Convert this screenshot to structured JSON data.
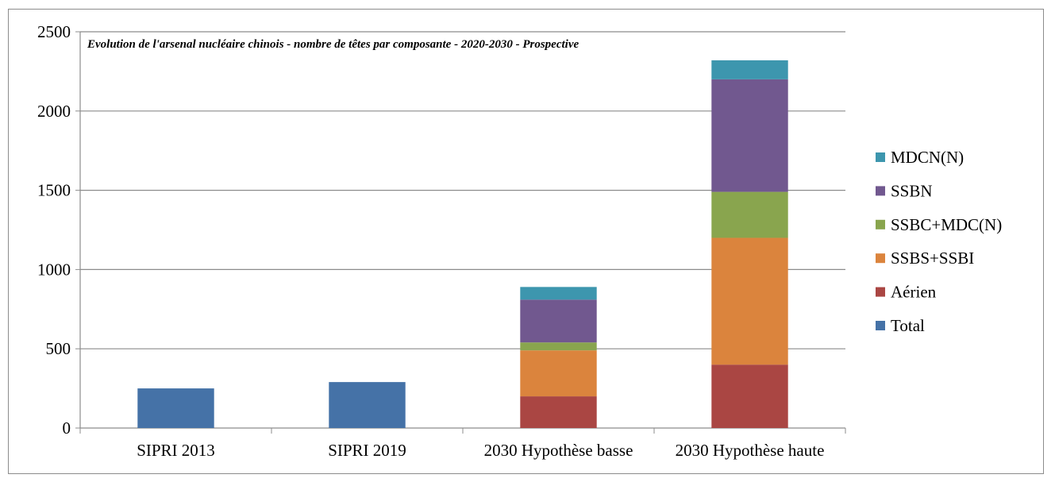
{
  "chart_data": {
    "type": "bar",
    "stacked": true,
    "title": "Evolution de l'arsenal nucléaire chinois - nombre de têtes par composante - 2020-2030 - Prospective",
    "xlabel": "",
    "ylabel": "",
    "ylim": [
      0,
      2500
    ],
    "yticks": [
      "0",
      "500",
      "1000",
      "1500",
      "2000",
      "2500"
    ],
    "grid": true,
    "legend_position": "right",
    "categories": [
      "SIPRI 2013",
      "SIPRI 2019",
      "2030 Hypothèse basse",
      "2030 Hypothèse haute"
    ],
    "series": [
      {
        "name": "Total",
        "color": "#4572a7",
        "values": [
          250,
          290,
          0,
          0
        ]
      },
      {
        "name": "Aérien",
        "color": "#aa4643",
        "values": [
          0,
          0,
          200,
          400
        ]
      },
      {
        "name": "SSBS+SSBI",
        "color": "#db843d",
        "values": [
          0,
          0,
          290,
          800
        ]
      },
      {
        "name": "SSBC+MDC(N)",
        "color": "#89a54e",
        "values": [
          0,
          0,
          50,
          290
        ]
      },
      {
        "name": "SSBN",
        "color": "#71588f",
        "values": [
          0,
          0,
          270,
          710
        ]
      },
      {
        "name": "MDCN(N)",
        "color": "#3d96ae",
        "values": [
          0,
          0,
          80,
          120
        ]
      }
    ]
  }
}
